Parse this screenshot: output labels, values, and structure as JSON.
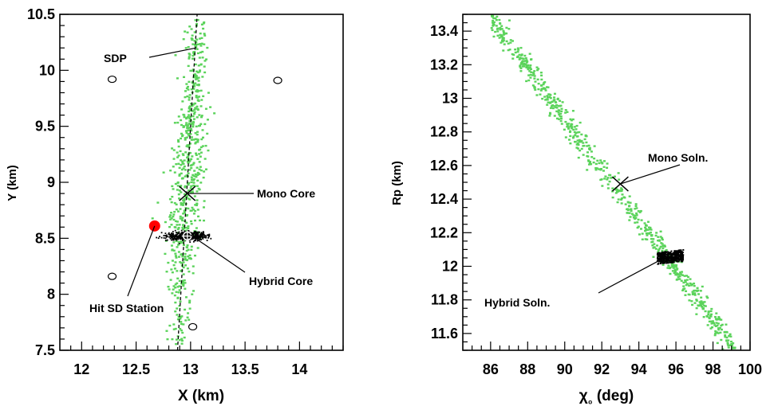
{
  "chart_data": [
    {
      "type": "scatter",
      "xlabel": "X (km)",
      "ylabel": "Y (km)",
      "xlim": [
        11.8,
        14.4
      ],
      "ylim": [
        7.5,
        10.5
      ],
      "xticks": [
        "12",
        "12.5",
        "13",
        "13.5",
        "14"
      ],
      "yticks": [
        "7.5",
        "8",
        "8.5",
        "9",
        "9.5",
        "10",
        "10.5"
      ],
      "grid": false,
      "colors": {
        "mono": "#5bd35b",
        "hybrid": "#000000",
        "hit_station": "#ff0000",
        "line": "#000000"
      },
      "sdp_line": [
        [
          12.88,
          7.5
        ],
        [
          13.06,
          10.5
        ]
      ],
      "mono_cloud": {
        "x_center": 12.97,
        "x_spread": 0.07,
        "y_min": 7.55,
        "y_max": 10.45,
        "count": 900
      },
      "hybrid_cloud": {
        "x_center": 12.97,
        "x_spread": 0.09,
        "y_center": 8.52,
        "y_spread": 0.018,
        "count": 450
      },
      "sd_stations": [
        [
          12.28,
          9.92
        ],
        [
          13.8,
          9.91
        ],
        [
          12.28,
          8.16
        ],
        [
          13.02,
          7.71
        ]
      ],
      "hit_station": [
        12.67,
        8.61
      ],
      "mono_core": [
        12.97,
        8.9
      ],
      "hybrid_core": [
        12.97,
        8.52
      ],
      "annotations": [
        {
          "text": "SDP",
          "point": [
            13.05,
            10.2
          ]
        },
        {
          "text": "Mono Core",
          "point": [
            12.97,
            8.9
          ]
        },
        {
          "text": "Hybrid Core",
          "point": [
            13.0,
            8.53
          ]
        },
        {
          "text": "Hit SD Station",
          "point": [
            12.67,
            8.61
          ]
        }
      ]
    },
    {
      "type": "scatter",
      "xlabel": "χ₀ (deg)",
      "ylabel": "Rp (km)",
      "xlim": [
        84.5,
        100
      ],
      "ylim": [
        11.5,
        13.5
      ],
      "xticks": [
        "86",
        "88",
        "90",
        "92",
        "94",
        "96",
        "98",
        "100"
      ],
      "yticks": [
        "11.6",
        "11.8",
        "12",
        "12.2",
        "12.4",
        "12.6",
        "12.8",
        "13",
        "13.2",
        "13.4"
      ],
      "grid": false,
      "colors": {
        "mono": "#5bd35b",
        "hybrid": "#000000"
      },
      "mono_band": {
        "x_start": 86.0,
        "x_end": 99.2,
        "y_start": 13.48,
        "y_end": 11.5,
        "spread": 0.04,
        "count": 700
      },
      "hybrid_cloud": {
        "x_min": 95.0,
        "x_max": 96.4,
        "y_min": 12.02,
        "y_max": 12.09,
        "count": 400
      },
      "mono_soln": [
        93.0,
        12.49
      ],
      "hybrid_soln": [
        95.2,
        12.04
      ],
      "annotations": [
        {
          "text": "Mono Soln.",
          "point": [
            93.0,
            12.49
          ]
        },
        {
          "text": "Hybrid Soln.",
          "point": [
            95.2,
            12.04
          ]
        }
      ]
    }
  ]
}
